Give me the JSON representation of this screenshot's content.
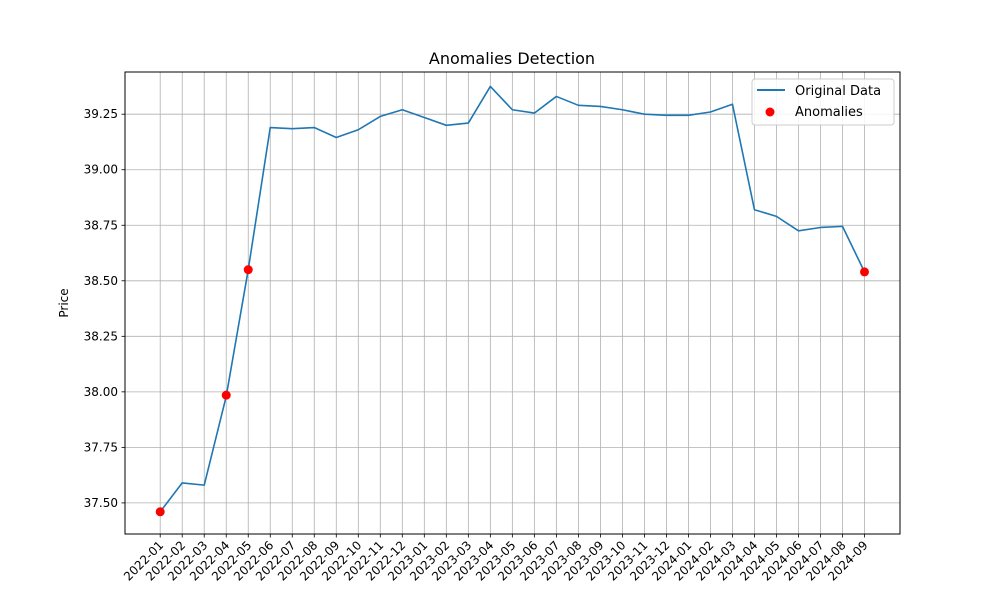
{
  "chart_data": {
    "type": "line",
    "title": "Anomalies Detection",
    "xlabel": "",
    "ylabel": "Price",
    "grid": true,
    "legend_position": "top-right",
    "ylim": [
      37.36,
      39.44
    ],
    "y_ticks": [
      "37.50",
      "37.75",
      "38.00",
      "38.25",
      "38.50",
      "38.75",
      "39.00",
      "39.25"
    ],
    "y_tick_values": [
      37.5,
      37.75,
      38.0,
      38.25,
      38.5,
      38.75,
      39.0,
      39.25
    ],
    "x": [
      "2022-01",
      "2022-02",
      "2022-03",
      "2022-04",
      "2022-05",
      "2022-06",
      "2022-07",
      "2022-08",
      "2022-09",
      "2022-10",
      "2022-11",
      "2022-12",
      "2023-01",
      "2023-02",
      "2023-03",
      "2023-04",
      "2023-05",
      "2023-06",
      "2023-07",
      "2023-08",
      "2023-09",
      "2023-10",
      "2023-11",
      "2023-12",
      "2024-01",
      "2024-02",
      "2024-03",
      "2024-04",
      "2024-05",
      "2024-06",
      "2024-07",
      "2024-08",
      "2024-09"
    ],
    "x_tick_labels": [
      "2022-01",
      "2022-02",
      "2022-03",
      "2022-04",
      "2022-05",
      "2022-06",
      "2022-07",
      "2022-08",
      "2022-09",
      "2022-10",
      "2022-11",
      "2022-12",
      "2023-01",
      "2023-02",
      "2023-03",
      "2023-04",
      "2023-05",
      "2023-06",
      "2023-07",
      "2023-08",
      "2023-09",
      "2023-10",
      "2023-11",
      "2023-12",
      "2024-01",
      "2024-02",
      "2024-03",
      "2024-04",
      "2024-05",
      "2024-06",
      "2024-07",
      "2024-08",
      "2024-09"
    ],
    "series": [
      {
        "name": "Original Data",
        "kind": "line",
        "color": "#1f77b4",
        "values": [
          37.46,
          37.59,
          37.58,
          37.98,
          38.55,
          39.19,
          39.185,
          39.19,
          39.145,
          39.18,
          39.24,
          39.27,
          39.235,
          39.2,
          39.21,
          39.375,
          39.27,
          39.255,
          39.33,
          39.29,
          39.285,
          39.27,
          39.25,
          39.245,
          39.245,
          39.26,
          39.295,
          38.82,
          38.79,
          38.725,
          38.74,
          38.745,
          38.54
        ]
      },
      {
        "name": "Anomalies",
        "kind": "scatter",
        "color": "#ff0000",
        "points": [
          {
            "x": "2022-01",
            "y": 37.46
          },
          {
            "x": "2022-04",
            "y": 37.985
          },
          {
            "x": "2022-05",
            "y": 38.55
          },
          {
            "x": "2024-09",
            "y": 38.54
          }
        ]
      }
    ]
  }
}
